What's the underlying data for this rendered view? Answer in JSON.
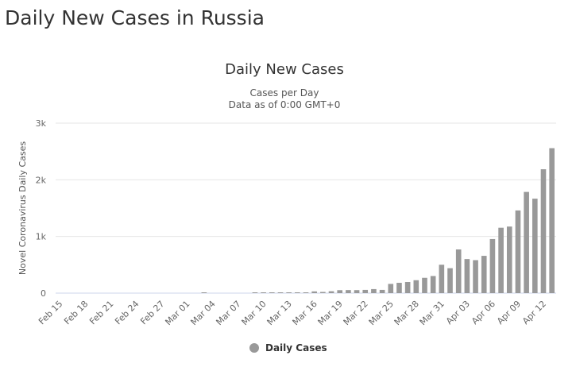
{
  "page": {
    "heading": "Daily New Cases in Russia"
  },
  "chart_data": {
    "type": "bar",
    "title": "Daily New Cases",
    "subtitle_lines": [
      "Cases per Day",
      "Data as of 0:00 GMT+0"
    ],
    "xlabel": "",
    "ylabel": "Novel Coronavirus Daily Cases",
    "ylim": [
      0,
      3000
    ],
    "y_ticks": [
      0,
      1000,
      2000,
      3000
    ],
    "y_tick_labels": [
      "0",
      "1k",
      "2k",
      "3k"
    ],
    "grid": true,
    "legend_position": "bottom",
    "bar_color": "#999999",
    "categories": [
      "Feb 15",
      "Feb 16",
      "Feb 17",
      "Feb 18",
      "Feb 19",
      "Feb 20",
      "Feb 21",
      "Feb 22",
      "Feb 23",
      "Feb 24",
      "Feb 25",
      "Feb 26",
      "Feb 27",
      "Feb 28",
      "Feb 29",
      "Mar 01",
      "Mar 02",
      "Mar 03",
      "Mar 04",
      "Mar 05",
      "Mar 06",
      "Mar 07",
      "Mar 08",
      "Mar 09",
      "Mar 10",
      "Mar 11",
      "Mar 12",
      "Mar 13",
      "Mar 14",
      "Mar 15",
      "Mar 16",
      "Mar 17",
      "Mar 18",
      "Mar 19",
      "Mar 20",
      "Mar 21",
      "Mar 22",
      "Mar 23",
      "Mar 24",
      "Mar 25",
      "Mar 26",
      "Mar 27",
      "Mar 28",
      "Mar 29",
      "Mar 30",
      "Mar 31",
      "Apr 01",
      "Apr 02",
      "Apr 03",
      "Apr 04",
      "Apr 05",
      "Apr 06",
      "Apr 07",
      "Apr 08",
      "Apr 09",
      "Apr 10",
      "Apr 11",
      "Apr 12",
      "Apr 13"
    ],
    "tick_labels": [
      "Feb 15",
      "Feb 18",
      "Feb 21",
      "Feb 24",
      "Feb 27",
      "Mar 01",
      "Mar 04",
      "Mar 07",
      "Mar 10",
      "Mar 13",
      "Mar 16",
      "Mar 19",
      "Mar 22",
      "Mar 25",
      "Mar 28",
      "Mar 31",
      "Apr 03",
      "Apr 06",
      "Apr 09",
      "Apr 12"
    ],
    "series": [
      {
        "name": "Daily Cases",
        "values": [
          0,
          0,
          0,
          0,
          0,
          0,
          0,
          0,
          0,
          0,
          0,
          0,
          0,
          0,
          0,
          0,
          0,
          1,
          0,
          0,
          0,
          0,
          0,
          7,
          3,
          8,
          6,
          14,
          11,
          14,
          30,
          21,
          33,
          52,
          54,
          53,
          57,
          71,
          57,
          163,
          182,
          196,
          228,
          270,
          302,
          501,
          440,
          771,
          601,
          582,
          658,
          954,
          1154,
          1175,
          1459,
          1786,
          1667,
          2186,
          2558
        ]
      }
    ]
  }
}
